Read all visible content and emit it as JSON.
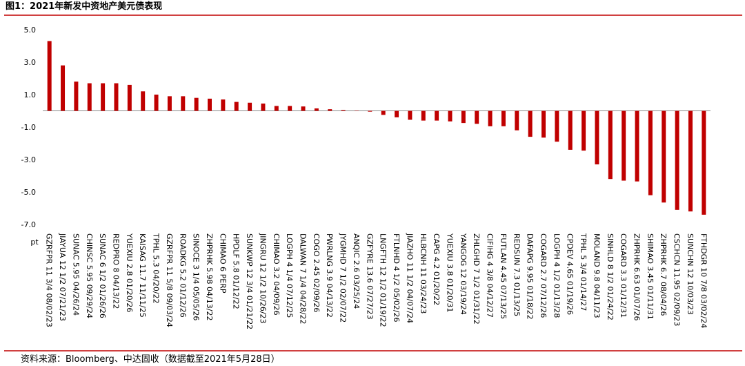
{
  "chart_data": {
    "type": "bar",
    "title": "图1：2021年新发中资地产美元债表现",
    "source": "资料来源：Bloomberg、中达固收（数据截至2021年5月28日）",
    "y_label": "pt",
    "color": "#c00000",
    "categories": [
      "GZRFPR 11 3/4 08/02/23",
      "JIAYUA 12 1/2 07/21/23",
      "SUNAC 5.95 04/26/24",
      "CHINSC 5.95 09/29/24",
      "SUNAC 6 1/2 01/26/26",
      "REDPRO 8 04/13/22",
      "YUEXIU 2.8 01/20/26",
      "KAISAG 11.7 11/11/25",
      "TPHL 5.3 04/20/22",
      "GZRFPR 11 5/8 09/03/24",
      "ROADKG 5.2 01/12/26",
      "SINOCE 3 1/4 05/05/26",
      "ZHPRHK 5.98 04/13/22",
      "CHIMAO 6 PERP",
      "HPDLF 5.8 01/12/22",
      "SUNKWP 12 3/4 01/21/22",
      "JINGRU 12 1/2 10/26/23",
      "CHIMAO 3.2 04/09/26",
      "LOGPH 4 1/4 07/12/25",
      "DALWAN 7 1/4 04/28/22",
      "COGO 2.45 02/09/26",
      "PWRLNG 3.9 04/13/22",
      "JYGMHD 7 1/2 02/07/22",
      "ANQIC 2.6 03/25/24",
      "GZFYRE 13.6 07/27/23",
      "LNGFTH 12 1/2 01/19/22",
      "FTLNHD 4 1/2 05/02/26",
      "JIAZHO 11 1/2 04/07/24",
      "HLBCNH 11 03/24/23",
      "CAPG 4.2 01/20/22",
      "YUEXIU 3.8 01/20/31",
      "YANGOG 12 03/19/24",
      "ZHLGHD 7 1/2 01/31/22",
      "CIFIHG 4 3/8 04/12/27",
      "FUTLAN 4.45 07/13/25",
      "REDSUN 7.3 01/13/25",
      "DAFAPG 9.95 01/18/22",
      "COGARD 2.7 07/12/26",
      "LOGPH 4 1/2 01/13/28",
      "CPDEV 4.65 01/19/26",
      "TPHL 5 3/4 01/14/27",
      "MOLAND 9.8 04/11/23",
      "SINHLD 8 1/2 01/24/22",
      "COGARD 3.3 01/12/31",
      "ZHPRHK 6.63 01/07/26",
      "SHIMAO 3.45 01/11/31",
      "ZHPRHK 6.7 08/04/26",
      "CSCHCN 11.95 02/09/23",
      "SUNCHN 12 10/03/23",
      "FTHDGR 10 7/8 03/02/24"
    ],
    "values": [
      4.3,
      2.8,
      1.8,
      1.7,
      1.7,
      1.7,
      1.6,
      1.2,
      1.0,
      0.9,
      0.9,
      0.8,
      0.75,
      0.7,
      0.55,
      0.5,
      0.45,
      0.3,
      0.3,
      0.27,
      0.15,
      0.1,
      0.05,
      -0.02,
      -0.05,
      -0.25,
      -0.4,
      -0.55,
      -0.6,
      -0.6,
      -0.65,
      -0.75,
      -0.8,
      -0.95,
      -0.95,
      -1.2,
      -1.6,
      -1.65,
      -1.9,
      -2.4,
      -2.45,
      -3.3,
      -4.2,
      -4.3,
      -4.35,
      -5.2,
      -5.65,
      -6.1,
      -6.2,
      -6.4
    ],
    "ylim": [
      -7,
      5
    ],
    "yticks": [
      {
        "value": 5,
        "label": "5.0"
      },
      {
        "value": 3,
        "label": "3.0"
      },
      {
        "value": 1,
        "label": "1.0"
      },
      {
        "value": -1,
        "label": "-1.0"
      },
      {
        "value": -3,
        "label": "-3.0"
      },
      {
        "value": -5,
        "label": "-5.0"
      },
      {
        "value": -7,
        "label": "-7.0"
      }
    ],
    "grid": false
  }
}
